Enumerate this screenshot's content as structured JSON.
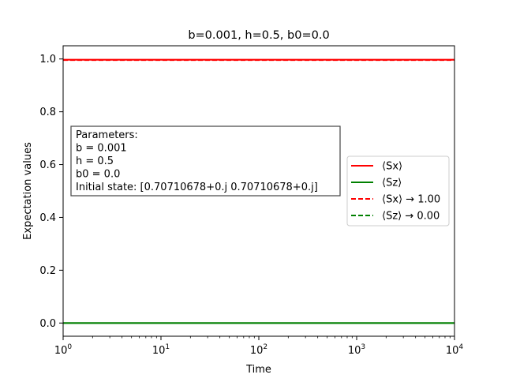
{
  "chart_data": {
    "type": "line",
    "title": "b=0.001, h=0.5, b0=0.0",
    "xlabel": "Time",
    "ylabel": "Expectation values",
    "xscale": "log",
    "xlim": [
      1,
      10000
    ],
    "ylim": [
      -0.05,
      1.05
    ],
    "grid": false,
    "legend_position": "center-right",
    "x_ticks": [
      {
        "value": 1,
        "base": "10",
        "exp": "0"
      },
      {
        "value": 10,
        "base": "10",
        "exp": "1"
      },
      {
        "value": 100,
        "base": "10",
        "exp": "2"
      },
      {
        "value": 1000,
        "base": "10",
        "exp": "3"
      },
      {
        "value": 10000,
        "base": "10",
        "exp": "4"
      }
    ],
    "y_ticks": [
      "0.0",
      "0.2",
      "0.4",
      "0.6",
      "0.8",
      "1.0"
    ],
    "series": [
      {
        "name": "⟨Sx⟩",
        "color": "#ff0000",
        "style": "solid",
        "x": [
          1,
          10000
        ],
        "y": [
          0.997,
          0.997
        ]
      },
      {
        "name": "⟨Sz⟩",
        "color": "#008000",
        "style": "solid",
        "x": [
          1,
          10000
        ],
        "y": [
          0.0,
          0.0
        ]
      },
      {
        "name": "⟨Sx⟩ → 1.00",
        "color": "#ff0000",
        "style": "dashed",
        "x": [
          1,
          10000
        ],
        "y": [
          0.995,
          0.995
        ]
      },
      {
        "name": "⟨Sz⟩ → 0.00",
        "color": "#008000",
        "style": "dashed",
        "x": [
          1,
          10000
        ],
        "y": [
          0.0,
          0.0
        ]
      }
    ],
    "annotation": [
      "Parameters:",
      "b = 0.001",
      "h = 0.5",
      "b0 = 0.0",
      "Initial state: [0.70710678+0.j 0.70710678+0.j]"
    ]
  }
}
